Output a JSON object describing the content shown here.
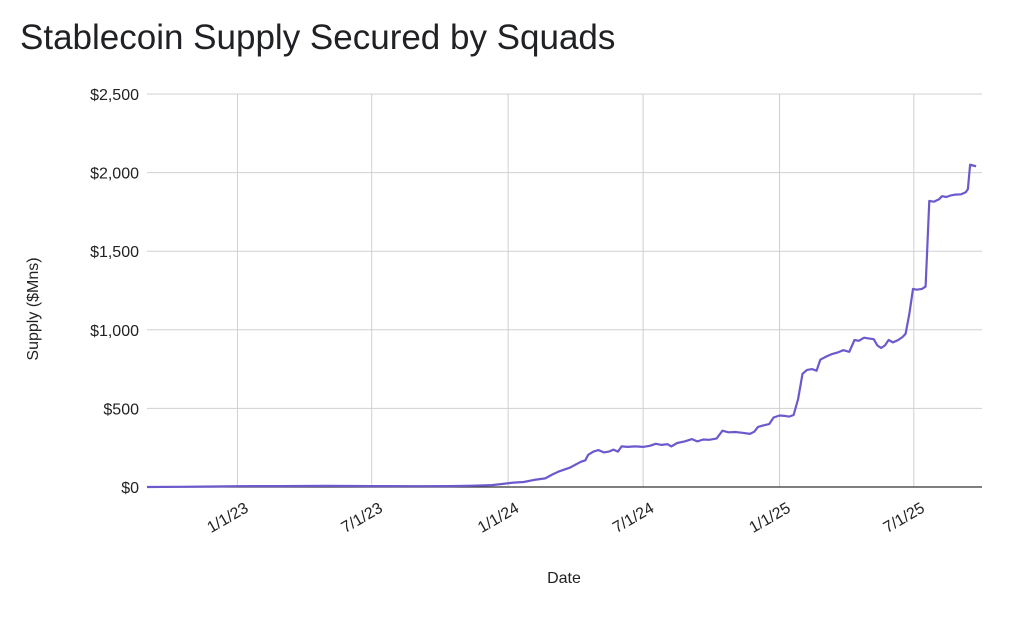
{
  "chart_data": {
    "type": "line",
    "title": "Stablecoin Supply Secured by Squads",
    "xlabel": "Date",
    "ylabel": "Supply ($Mns)",
    "ylim": [
      0,
      2500
    ],
    "y_ticks": [
      0,
      500,
      1000,
      1500,
      2000,
      2500
    ],
    "y_tick_labels": [
      "$0",
      "$500",
      "$1,000",
      "$1,500",
      "$2,000",
      "$2,500"
    ],
    "x_range": [
      "2022-09-01",
      "2025-10-01"
    ],
    "x_ticks": [
      "2023-01-01",
      "2023-07-01",
      "2024-01-01",
      "2024-07-01",
      "2025-01-01",
      "2025-07-01"
    ],
    "x_tick_labels": [
      "1/1/23",
      "7/1/23",
      "1/1/24",
      "7/1/24",
      "1/1/25",
      "7/1/25"
    ],
    "grid": true,
    "legend": "none",
    "series": [
      {
        "color": "#6a5acd",
        "points": [
          [
            "2022-09-01",
            0
          ],
          [
            "2022-10-15",
            1
          ],
          [
            "2022-12-01",
            3
          ],
          [
            "2023-01-01",
            5
          ],
          [
            "2023-03-01",
            6
          ],
          [
            "2023-05-01",
            7
          ],
          [
            "2023-07-01",
            6
          ],
          [
            "2023-09-01",
            5
          ],
          [
            "2023-10-15",
            6
          ],
          [
            "2023-11-15",
            8
          ],
          [
            "2023-12-10",
            12
          ],
          [
            "2023-12-25",
            20
          ],
          [
            "2024-01-08",
            28
          ],
          [
            "2024-01-22",
            32
          ],
          [
            "2024-02-05",
            45
          ],
          [
            "2024-02-20",
            55
          ],
          [
            "2024-03-01",
            80
          ],
          [
            "2024-03-10",
            100
          ],
          [
            "2024-03-25",
            125
          ],
          [
            "2024-04-08",
            160
          ],
          [
            "2024-04-14",
            170
          ],
          [
            "2024-04-18",
            205
          ],
          [
            "2024-04-25",
            225
          ],
          [
            "2024-05-02",
            235
          ],
          [
            "2024-05-09",
            220
          ],
          [
            "2024-05-16",
            225
          ],
          [
            "2024-05-22",
            238
          ],
          [
            "2024-05-28",
            225
          ],
          [
            "2024-06-02",
            258
          ],
          [
            "2024-06-10",
            255
          ],
          [
            "2024-06-20",
            258
          ],
          [
            "2024-07-01",
            255
          ],
          [
            "2024-07-10",
            262
          ],
          [
            "2024-07-18",
            275
          ],
          [
            "2024-07-26",
            268
          ],
          [
            "2024-08-03",
            272
          ],
          [
            "2024-08-08",
            258
          ],
          [
            "2024-08-16",
            280
          ],
          [
            "2024-08-26",
            290
          ],
          [
            "2024-09-05",
            305
          ],
          [
            "2024-09-12",
            290
          ],
          [
            "2024-09-20",
            302
          ],
          [
            "2024-09-28",
            300
          ],
          [
            "2024-10-08",
            308
          ],
          [
            "2024-10-16",
            358
          ],
          [
            "2024-10-24",
            348
          ],
          [
            "2024-11-02",
            350
          ],
          [
            "2024-11-12",
            345
          ],
          [
            "2024-11-22",
            338
          ],
          [
            "2024-11-28",
            352
          ],
          [
            "2024-12-03",
            382
          ],
          [
            "2024-12-10",
            392
          ],
          [
            "2024-12-18",
            400
          ],
          [
            "2024-12-24",
            442
          ],
          [
            "2025-01-01",
            455
          ],
          [
            "2025-01-08",
            452
          ],
          [
            "2025-01-14",
            448
          ],
          [
            "2025-01-20",
            458
          ],
          [
            "2025-01-26",
            560
          ],
          [
            "2025-02-01",
            720
          ],
          [
            "2025-02-07",
            745
          ],
          [
            "2025-02-14",
            750
          ],
          [
            "2025-02-20",
            740
          ],
          [
            "2025-02-25",
            810
          ],
          [
            "2025-03-05",
            830
          ],
          [
            "2025-03-12",
            845
          ],
          [
            "2025-03-20",
            855
          ],
          [
            "2025-03-28",
            870
          ],
          [
            "2025-04-05",
            860
          ],
          [
            "2025-04-12",
            935
          ],
          [
            "2025-04-18",
            930
          ],
          [
            "2025-04-25",
            950
          ],
          [
            "2025-05-01",
            945
          ],
          [
            "2025-05-08",
            940
          ],
          [
            "2025-05-13",
            900
          ],
          [
            "2025-05-18",
            885
          ],
          [
            "2025-05-23",
            900
          ],
          [
            "2025-05-28",
            935
          ],
          [
            "2025-06-03",
            920
          ],
          [
            "2025-06-10",
            935
          ],
          [
            "2025-06-16",
            955
          ],
          [
            "2025-06-20",
            975
          ],
          [
            "2025-06-25",
            1100
          ],
          [
            "2025-06-30",
            1260
          ],
          [
            "2025-07-05",
            1255
          ],
          [
            "2025-07-12",
            1260
          ],
          [
            "2025-07-17",
            1275
          ],
          [
            "2025-07-22",
            1820
          ],
          [
            "2025-07-28",
            1815
          ],
          [
            "2025-08-04",
            1830
          ],
          [
            "2025-08-08",
            1850
          ],
          [
            "2025-08-14",
            1845
          ],
          [
            "2025-08-20",
            1855
          ],
          [
            "2025-08-26",
            1860
          ],
          [
            "2025-09-03",
            1862
          ],
          [
            "2025-09-09",
            1875
          ],
          [
            "2025-09-12",
            1895
          ],
          [
            "2025-09-15",
            2050
          ],
          [
            "2025-09-19",
            2045
          ],
          [
            "2025-09-23",
            2040
          ]
        ]
      }
    ]
  }
}
